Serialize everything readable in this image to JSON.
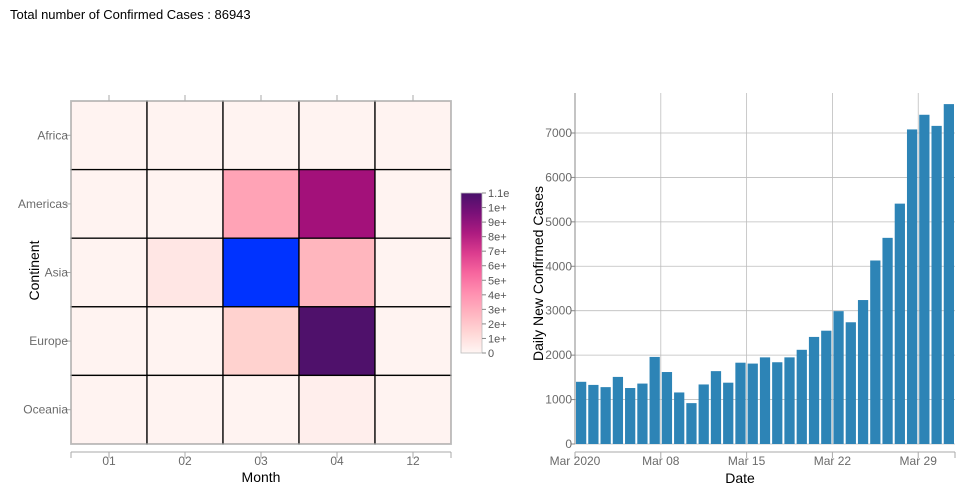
{
  "summary": {
    "label": "Total number of Confirmed Cases : ",
    "value": "86943"
  },
  "chart_data": [
    {
      "type": "heatmap",
      "xlabel": "Month",
      "ylabel": "Continent",
      "x_categories": [
        "01",
        "02",
        "03",
        "04",
        "12"
      ],
      "y_categories": [
        "Africa",
        "Americas",
        "Asia",
        "Europe",
        "Oceania"
      ],
      "colors": {
        "Africa": {
          "01": "#fff3f1",
          "02": "#fff3f1",
          "03": "#fff3f1",
          "04": "#fff3f1",
          "12": "#fff3f1"
        },
        "Americas": {
          "01": "#fff3f1",
          "02": "#fff3f1",
          "03": "#ffa3b6",
          "04": "#a3117a",
          "12": "#fff3f1"
        },
        "Asia": {
          "01": "#fff3f1",
          "02": "#ffe6e4",
          "03": "#0033ff",
          "04": "#ffb6be",
          "12": "#fff3f1"
        },
        "Europe": {
          "01": "#fff3f1",
          "02": "#fff3f1",
          "03": "#ffd2cf",
          "04": "#4f116b",
          "12": "#fff3f1"
        },
        "Oceania": {
          "01": "#fff3f1",
          "02": "#fff3f1",
          "03": "#fff3f1",
          "04": "#ffeeec",
          "12": "#fff3f1"
        }
      },
      "colorbar": {
        "ticks": [
          "1.1e",
          "1e+",
          "9e+",
          "8e+",
          "7e+",
          "6e+",
          "5e+",
          "4e+",
          "3e+",
          "2e+",
          "1e+",
          "0"
        ],
        "gradient": [
          "#49106b",
          "#7a1078",
          "#ad1b80",
          "#db3c8e",
          "#f7669e",
          "#ff8fb0",
          "#ffb4c0",
          "#ffd7d6",
          "#fff6f4"
        ]
      }
    },
    {
      "type": "bar",
      "xlabel": "Date",
      "ylabel": "Daily New Confirmed Cases",
      "ylim": [
        0,
        7900
      ],
      "yticks": [
        0,
        1000,
        2000,
        3000,
        4000,
        5000,
        6000,
        7000
      ],
      "color": "#2d84b6",
      "x_tick_labels": [
        {
          "label": "Mar 2020",
          "index": 0
        },
        {
          "label": "Mar 08",
          "index": 7
        },
        {
          "label": "Mar 15",
          "index": 14
        },
        {
          "label": "Mar 22",
          "index": 21
        },
        {
          "label": "Mar 29",
          "index": 28
        }
      ],
      "values": [
        1400,
        1330,
        1280,
        1510,
        1260,
        1360,
        1960,
        1620,
        1160,
        920,
        1340,
        1640,
        1380,
        1830,
        1810,
        1950,
        1840,
        1950,
        2120,
        2410,
        2550,
        2990,
        2740,
        3240,
        4130,
        4640,
        5410,
        7080,
        7410,
        7160,
        7650
      ]
    }
  ]
}
